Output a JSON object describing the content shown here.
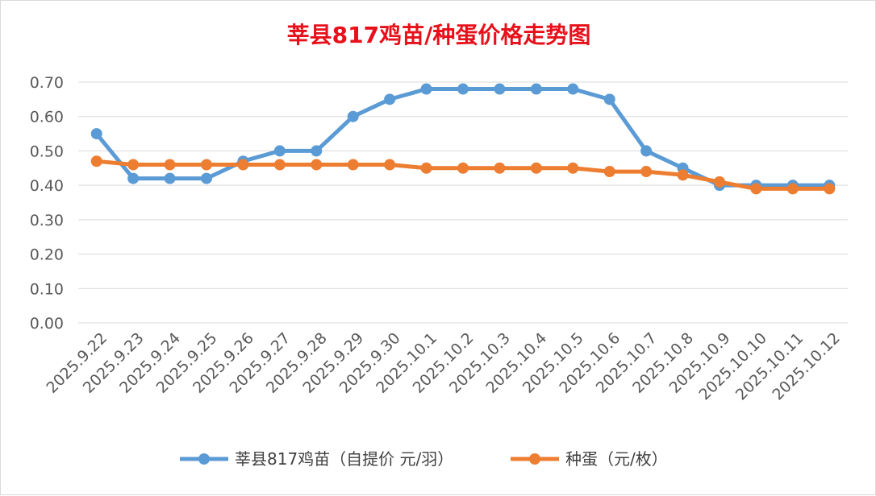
{
  "colors": {
    "series_1": "#5b9bd5",
    "series_2": "#ed7d31",
    "grid": "#d9d9d9",
    "title": "#e8101a",
    "tick": "#595959"
  },
  "chart_data": {
    "type": "line",
    "title": "莘县817鸡苗/种蛋价格走势图",
    "xlabel": "",
    "ylabel": "",
    "ylim": [
      0,
      0.7
    ],
    "ytick_step": 0.1,
    "yticks": [
      "0.00",
      "0.10",
      "0.20",
      "0.30",
      "0.40",
      "0.50",
      "0.60",
      "0.70"
    ],
    "grid": "horizontal",
    "legend_position": "bottom",
    "categories": [
      "2025.9.22",
      "2025.9.23",
      "2025.9.24",
      "2025.9.25",
      "2025.9.26",
      "2025.9.27",
      "2025.9.28",
      "2025.9.29",
      "2025.9.30",
      "2025.10.1",
      "2025.10.2",
      "2025.10.3",
      "2025.10.4",
      "2025.10.5",
      "2025.10.6",
      "2025.10.7",
      "2025.10.8",
      "2025.10.9",
      "2025.10.10",
      "2025.10.11",
      "2025.10.12"
    ],
    "series": [
      {
        "name": "莘县817鸡苗（自提价 元/羽）",
        "values": [
          0.55,
          0.42,
          0.42,
          0.42,
          0.47,
          0.5,
          0.5,
          0.6,
          0.65,
          0.68,
          0.68,
          0.68,
          0.68,
          0.68,
          0.65,
          0.5,
          0.45,
          0.4,
          0.4,
          0.4,
          0.4
        ]
      },
      {
        "name": "种蛋（元/枚）",
        "values": [
          0.47,
          0.46,
          0.46,
          0.46,
          0.46,
          0.46,
          0.46,
          0.46,
          0.46,
          0.45,
          0.45,
          0.45,
          0.45,
          0.45,
          0.44,
          0.44,
          0.43,
          0.41,
          0.39,
          0.39,
          0.39
        ]
      }
    ]
  }
}
